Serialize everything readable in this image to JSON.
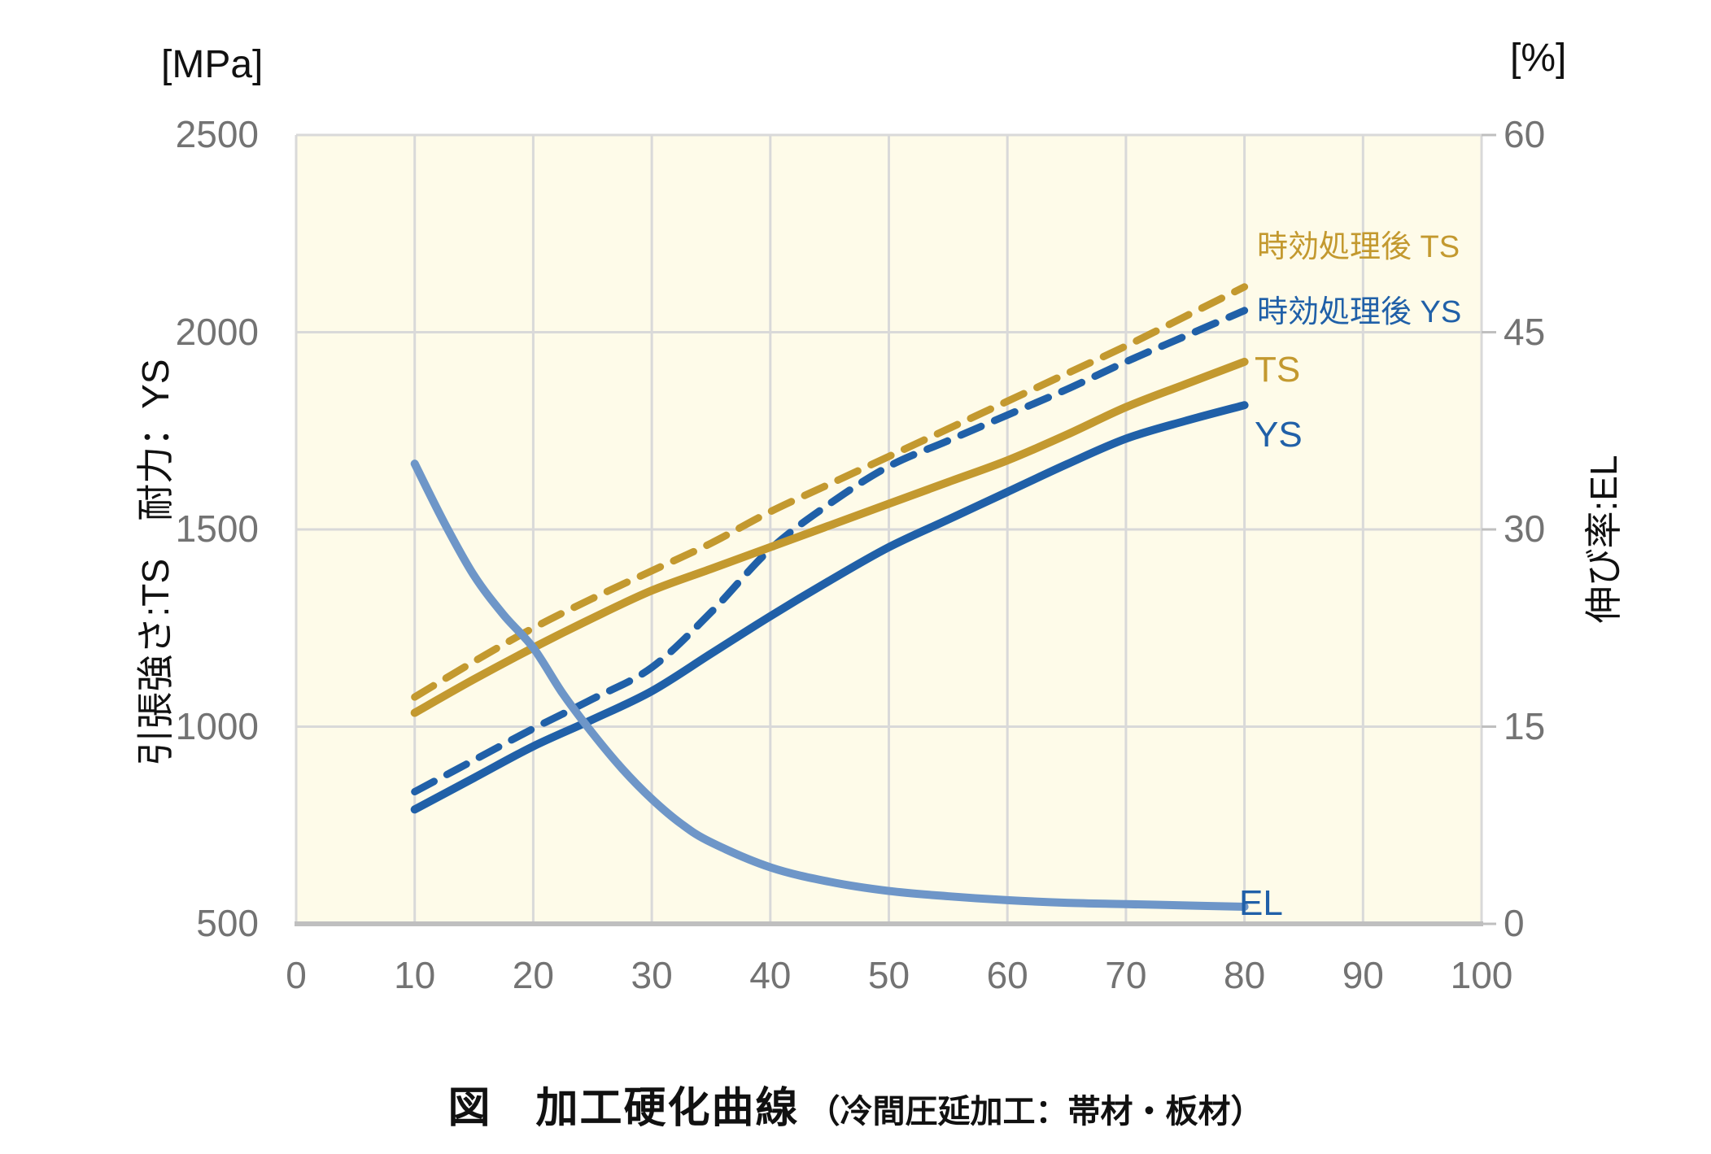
{
  "figure": {
    "left_unit": "[MPa]",
    "right_unit": "[%]",
    "left_axis_title": "引張強さ:TS　耐力：YS",
    "right_axis_title": "伸び率:EL",
    "caption_main": "図　加工硬化曲線",
    "caption_sub": "（冷間圧延加工：帯材・板材）"
  },
  "legend": {
    "aged_ts": "時効処理後 TS",
    "aged_ys": "時効処理後 YS",
    "ts": "TS",
    "ys": "YS",
    "el": "EL"
  },
  "colors": {
    "gold": "#C3992F",
    "blue": "#2060A8",
    "light_blue": "#6E96C8",
    "grid": "#D9D9D9",
    "axis": "#BFBFBF",
    "tick_text": "#737373",
    "plot_bg": "#FEFBE9"
  },
  "chart_data": {
    "type": "line",
    "title": "図 加工硬化曲線（冷間圧延加工：帯材・板材）",
    "xlabel": "",
    "x_axis": {
      "range": [
        0,
        100
      ],
      "ticks": [
        0,
        10,
        20,
        30,
        40,
        50,
        60,
        70,
        80,
        90,
        100
      ]
    },
    "y_axis_left": {
      "label": "引張強さ:TS 耐力：YS",
      "unit": "MPa",
      "range": [
        500,
        2500
      ],
      "ticks": [
        2500,
        2000,
        1500,
        1000,
        500
      ]
    },
    "y_axis_right": {
      "label": "伸び率:EL",
      "unit": "%",
      "range": [
        0,
        60
      ],
      "ticks": [
        60,
        45,
        30,
        15,
        0
      ]
    },
    "grid": true,
    "legend_position": "inside-right",
    "series": [
      {
        "name": "時効処理後 TS",
        "axis": "left",
        "style": "dashed",
        "color_key": "gold",
        "x": [
          10,
          15,
          20,
          25,
          30,
          35,
          40,
          45,
          50,
          55,
          60,
          65,
          70,
          75,
          80
        ],
        "y": [
          1075,
          1165,
          1250,
          1325,
          1395,
          1465,
          1545,
          1615,
          1685,
          1755,
          1825,
          1895,
          1965,
          2040,
          2115
        ]
      },
      {
        "name": "時効処理後 YS",
        "axis": "left",
        "style": "dashed",
        "color_key": "blue",
        "x": [
          10,
          15,
          20,
          25,
          30,
          35,
          40,
          45,
          50,
          55,
          60,
          65,
          70,
          75,
          80
        ],
        "y": [
          835,
          915,
          995,
          1070,
          1150,
          1290,
          1450,
          1565,
          1660,
          1725,
          1790,
          1855,
          1925,
          1990,
          2055
        ]
      },
      {
        "name": "TS",
        "axis": "left",
        "style": "solid",
        "color_key": "gold",
        "x": [
          10,
          15,
          20,
          25,
          30,
          35,
          40,
          45,
          50,
          55,
          60,
          65,
          70,
          75,
          80
        ],
        "y": [
          1035,
          1120,
          1200,
          1275,
          1345,
          1400,
          1455,
          1510,
          1565,
          1620,
          1675,
          1740,
          1810,
          1868,
          1925
        ]
      },
      {
        "name": "YS",
        "axis": "left",
        "style": "solid",
        "color_key": "blue",
        "x": [
          10,
          15,
          20,
          25,
          30,
          35,
          40,
          45,
          50,
          55,
          60,
          65,
          70,
          75,
          80
        ],
        "y": [
          790,
          870,
          950,
          1018,
          1090,
          1185,
          1280,
          1370,
          1455,
          1525,
          1595,
          1665,
          1730,
          1775,
          1815
        ]
      },
      {
        "name": "EL",
        "axis": "right",
        "style": "solid",
        "color_key": "light_blue",
        "x": [
          10,
          12.5,
          15,
          17.5,
          20,
          22.5,
          25,
          27.5,
          30,
          32.5,
          35,
          40,
          45,
          50,
          55,
          60,
          65,
          70,
          75,
          80
        ],
        "y": [
          35,
          30.5,
          26.5,
          23.5,
          21,
          17.5,
          14.5,
          11.8,
          9.5,
          7.6,
          6.2,
          4.3,
          3.2,
          2.5,
          2.1,
          1.8,
          1.6,
          1.5,
          1.4,
          1.3
        ]
      }
    ]
  }
}
